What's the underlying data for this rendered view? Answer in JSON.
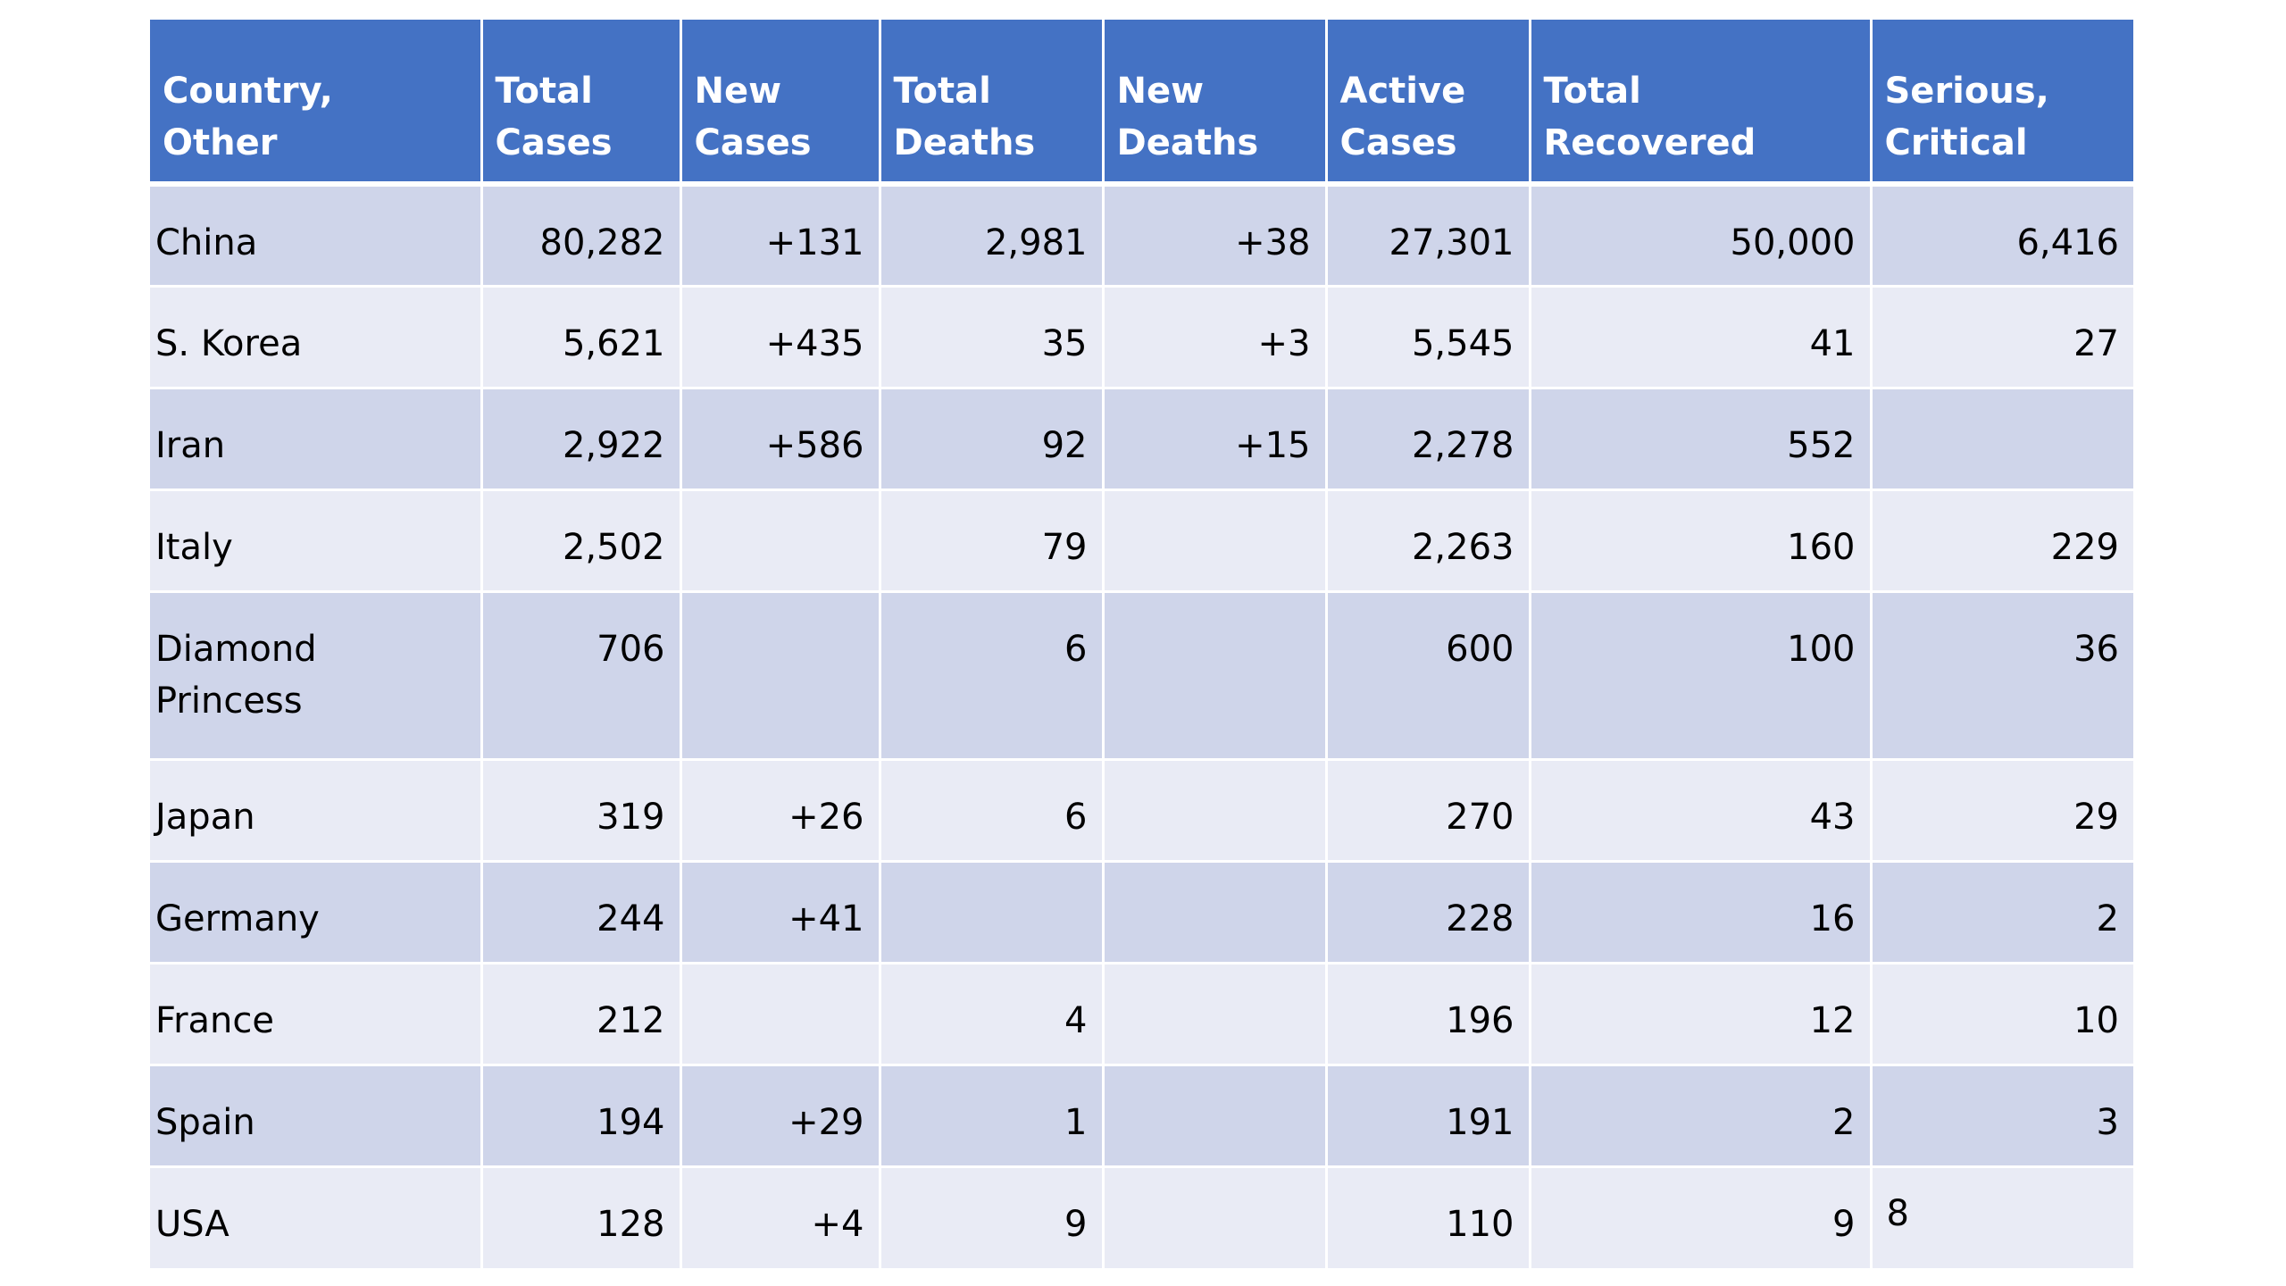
{
  "table": {
    "headers": [
      "Country,\nOther",
      "Total\nCases",
      "New\nCases",
      "Total\nDeaths",
      "New\nDeaths",
      "Active\nCases",
      "Total\nRecovered",
      "Serious,\nCritical"
    ],
    "rows": [
      [
        "China",
        "80,282",
        "+131",
        "2,981",
        "+38",
        "27,301",
        "50,000",
        "6,416"
      ],
      [
        "S. Korea",
        "5,621",
        "+435",
        "35",
        "+3",
        "5,545",
        "41",
        "27"
      ],
      [
        "Iran",
        "2,922",
        "+586",
        "92",
        "+15",
        "2,278",
        "552",
        ""
      ],
      [
        "Italy",
        "2,502",
        "",
        "79",
        "",
        "2,263",
        "160",
        "229"
      ],
      [
        "Diamond\nPrincess",
        "706",
        "",
        "6",
        "",
        "600",
        "100",
        "36"
      ],
      [
        "Japan",
        "319",
        "+26",
        "6",
        "",
        "270",
        "43",
        "29"
      ],
      [
        "Germany",
        "244",
        "+41",
        "",
        "",
        "228",
        "16",
        "2"
      ],
      [
        "France",
        "212",
        "",
        "4",
        "",
        "196",
        "12",
        "10"
      ],
      [
        "Spain",
        "194",
        "+29",
        "1",
        "",
        "191",
        "2",
        "3"
      ],
      [
        "USA",
        "128",
        "+4",
        "9",
        "",
        "110",
        "9",
        "8"
      ]
    ]
  }
}
